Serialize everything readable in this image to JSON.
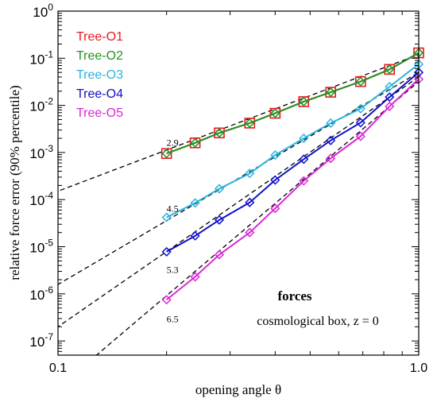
{
  "chart_data": {
    "type": "line",
    "xlabel": "opening angle  θ",
    "ylabel": "relative force error (90% percentile)",
    "xscale": "log",
    "yscale": "log",
    "xlim": [
      0.1,
      1.0
    ],
    "ylim": [
      5e-08,
      1
    ],
    "x_tick_labels": [
      {
        "value": 0.1,
        "label": "0.1"
      },
      {
        "value": 1.0,
        "label": "1.0"
      }
    ],
    "y_tick_labels": [
      {
        "exp": 0,
        "base": "10",
        "sup": "0"
      },
      {
        "exp": -1,
        "base": "10",
        "sup": "-1"
      },
      {
        "exp": -2,
        "base": "10",
        "sup": "-2"
      },
      {
        "exp": -3,
        "base": "10",
        "sup": "-3"
      },
      {
        "exp": -4,
        "base": "10",
        "sup": "-4"
      },
      {
        "exp": -5,
        "base": "10",
        "sup": "-5"
      },
      {
        "exp": -6,
        "base": "10",
        "sup": "-6"
      },
      {
        "exp": -7,
        "base": "10",
        "sup": "-7"
      }
    ],
    "grid": false,
    "legend_position": "top-left",
    "x": [
      0.2,
      0.24,
      0.28,
      0.34,
      0.4,
      0.48,
      0.57,
      0.69,
      0.83,
      1.0
    ],
    "series": [
      {
        "name": "Tree-O1",
        "color": "#e8191f",
        "marker": "square",
        "values": [
          0.00095,
          0.0016,
          0.0026,
          0.0042,
          0.0068,
          0.012,
          0.019,
          0.032,
          0.058,
          0.13
        ]
      },
      {
        "name": "Tree-O2",
        "color": "#229322",
        "marker": "diamond",
        "values": [
          0.00095,
          0.0016,
          0.0026,
          0.0042,
          0.0068,
          0.012,
          0.019,
          0.032,
          0.058,
          0.13
        ]
      },
      {
        "name": "Tree-O3",
        "color": "#2cb3de",
        "marker": "diamond",
        "values": [
          4.2e-05,
          8.5e-05,
          0.00017,
          0.00036,
          0.00088,
          0.002,
          0.0042,
          0.0085,
          0.025,
          0.075
        ]
      },
      {
        "name": "Tree-O4",
        "color": "#0f10c9",
        "marker": "diamond",
        "values": [
          7.8e-06,
          1.7e-05,
          3.7e-05,
          8.7e-05,
          0.00026,
          0.00072,
          0.0018,
          0.0043,
          0.015,
          0.05
        ]
      },
      {
        "name": "Tree-O5",
        "color": "#dd26d8",
        "marker": "diamond",
        "values": [
          7.5e-07,
          2.3e-06,
          6.8e-06,
          2e-05,
          6.5e-05,
          0.00025,
          0.00075,
          0.0022,
          0.0095,
          0.036
        ]
      }
    ],
    "fit_lines": [
      {
        "label": "2.9",
        "slope": 2.9,
        "y_at_1": 0.12,
        "label_x": 0.2,
        "label_y": 0.0014
      },
      {
        "label": "4.5",
        "slope": 4.5,
        "y_at_1": 0.05,
        "label_x": 0.2,
        "label_y": 5.5e-05
      },
      {
        "label": "5.3",
        "slope": 5.3,
        "y_at_1": 0.04,
        "label_x": 0.2,
        "label_y": 2.8e-06
      },
      {
        "label": "6.5",
        "slope": 6.5,
        "y_at_1": 0.032,
        "label_x": 0.2,
        "label_y": 2.5e-07
      }
    ],
    "annotations": [
      {
        "text": "forces",
        "bold": true,
        "x": 0.8,
        "y": 8e-07
      },
      {
        "text": "cosmological box, z = 0",
        "bold": false,
        "x": 0.8,
        "y": 2.5e-07
      }
    ]
  }
}
